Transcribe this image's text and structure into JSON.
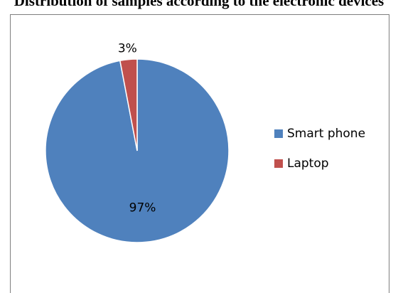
{
  "chart_data": {
    "type": "pie",
    "title": "Distribution of samples according to the electronic devices",
    "categories": [
      "Smart phone",
      "Laptop"
    ],
    "values": [
      97,
      3
    ],
    "data_labels": [
      "97%",
      "3%"
    ],
    "colors": [
      "#4f81bd",
      "#c0504d"
    ],
    "legend_position": "right"
  }
}
